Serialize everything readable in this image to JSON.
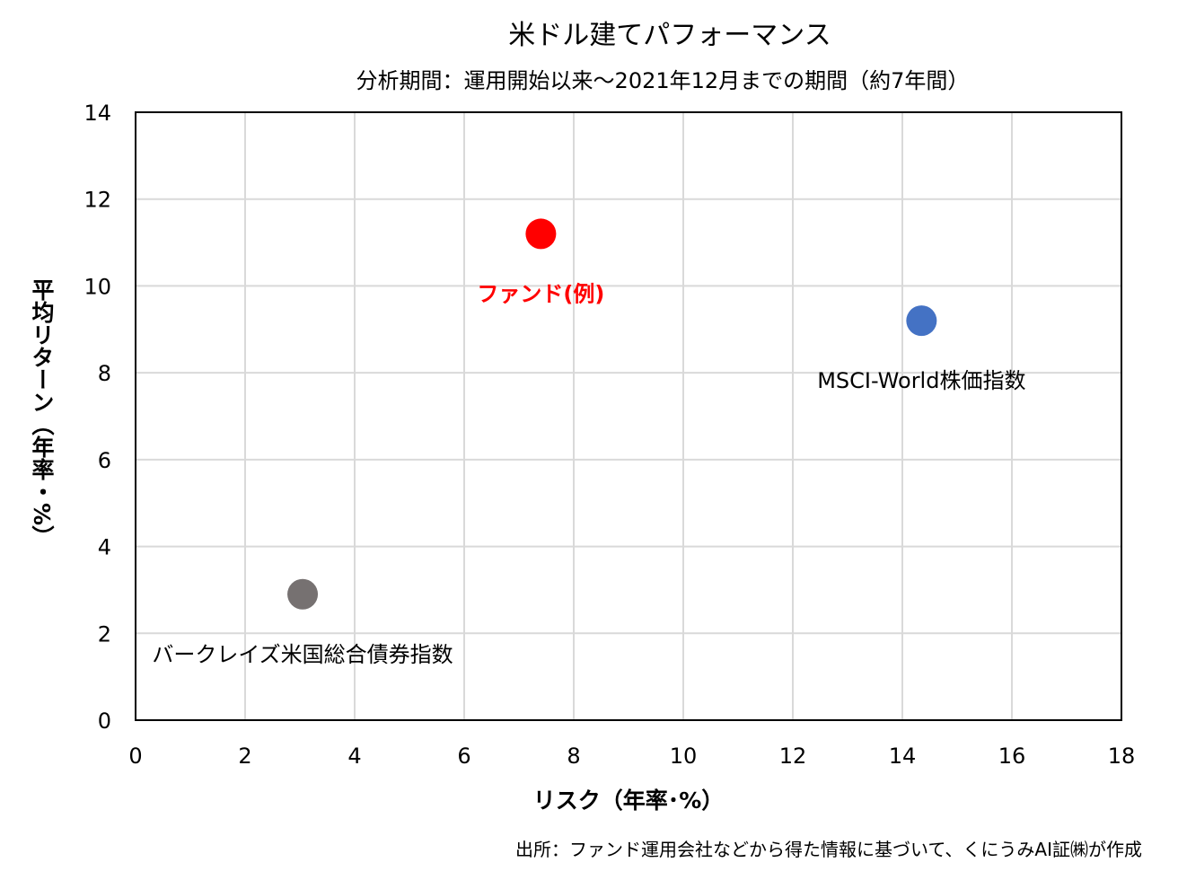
{
  "chart_data": {
    "type": "scatter",
    "title": "米ドル建てパフォーマンス",
    "subtitle": "分析期間：運用開始以来～2021年12月までの期間（約7年間）",
    "xlabel": "リスク（年率･%）",
    "ylabel": "平均リターン（年率・%）",
    "xlim": [
      0,
      18
    ],
    "ylim": [
      0,
      14
    ],
    "xticks": [
      0,
      2,
      4,
      6,
      8,
      10,
      12,
      14,
      16,
      18
    ],
    "yticks": [
      0,
      2,
      4,
      6,
      8,
      10,
      12,
      14
    ],
    "grid": true,
    "points": [
      {
        "label": "ファンド(例)",
        "x": 7.4,
        "y": 11.2,
        "color": "#ff0000",
        "label_color": "#ff0000",
        "label_bold": true,
        "label_pos": "below"
      },
      {
        "label": "MSCI-World株価指数",
        "x": 14.35,
        "y": 9.2,
        "color": "#4472c4",
        "label_color": "#000000",
        "label_bold": false,
        "label_pos": "below"
      },
      {
        "label": "バークレイズ米国総合債券指数",
        "x": 3.05,
        "y": 2.9,
        "color": "#767171",
        "label_color": "#000000",
        "label_bold": false,
        "label_pos": "below"
      }
    ],
    "source": "出所：ファンド運用会社などから得た情報に基づいて、くにうみAI証㈱が作成"
  }
}
